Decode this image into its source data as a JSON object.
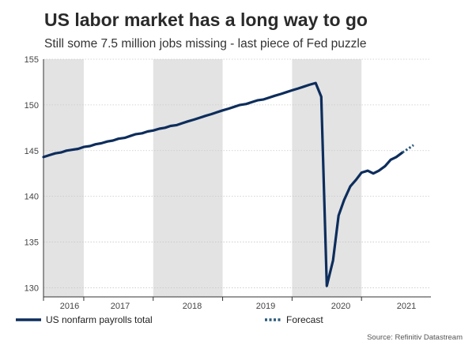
{
  "chart_data": {
    "type": "line",
    "title": "US labor market has a long way to go",
    "subtitle": "Still some 7.5 million jobs missing - last piece of Fed puzzle",
    "xlabel": "",
    "ylabel": "",
    "ylim": [
      129,
      155
    ],
    "yticks": [
      130,
      135,
      140,
      145,
      150,
      155
    ],
    "xlim": [
      2015.75,
      2021.33
    ],
    "xticks": [
      {
        "label": "2016",
        "center": 2016.0
      },
      {
        "label": "2017",
        "center": 2016.5
      },
      {
        "label": "2018",
        "center": 2017.5
      },
      {
        "label": "2019",
        "center": 2018.5
      },
      {
        "label": "2020",
        "center": 2019.5
      },
      {
        "label": "2021",
        "center": 2020.5
      }
    ],
    "shaded_years": [
      [
        2015.75,
        2016.33
      ],
      [
        2017.33,
        2018.33
      ],
      [
        2019.33,
        2020.33
      ]
    ],
    "grid": "horizontal",
    "series": [
      {
        "name": "US nonfarm payrolls total",
        "color": "#0d2d5c",
        "style": "solid",
        "points": [
          [
            2015.75,
            144.3
          ],
          [
            2015.83,
            144.5
          ],
          [
            2015.92,
            144.7
          ],
          [
            2016.0,
            144.8
          ],
          [
            2016.08,
            145.0
          ],
          [
            2016.17,
            145.1
          ],
          [
            2016.25,
            145.2
          ],
          [
            2016.33,
            145.4
          ],
          [
            2016.42,
            145.5
          ],
          [
            2016.5,
            145.7
          ],
          [
            2016.58,
            145.8
          ],
          [
            2016.67,
            146.0
          ],
          [
            2016.75,
            146.1
          ],
          [
            2016.83,
            146.3
          ],
          [
            2016.92,
            146.4
          ],
          [
            2017.0,
            146.6
          ],
          [
            2017.08,
            146.8
          ],
          [
            2017.17,
            146.9
          ],
          [
            2017.25,
            147.1
          ],
          [
            2017.33,
            147.2
          ],
          [
            2017.42,
            147.4
          ],
          [
            2017.5,
            147.5
          ],
          [
            2017.58,
            147.7
          ],
          [
            2017.67,
            147.8
          ],
          [
            2017.75,
            148.0
          ],
          [
            2017.83,
            148.2
          ],
          [
            2017.92,
            148.4
          ],
          [
            2018.0,
            148.6
          ],
          [
            2018.08,
            148.8
          ],
          [
            2018.17,
            149.0
          ],
          [
            2018.25,
            149.2
          ],
          [
            2018.33,
            149.4
          ],
          [
            2018.42,
            149.6
          ],
          [
            2018.5,
            149.8
          ],
          [
            2018.58,
            150.0
          ],
          [
            2018.67,
            150.1
          ],
          [
            2018.75,
            150.3
          ],
          [
            2018.83,
            150.5
          ],
          [
            2018.92,
            150.6
          ],
          [
            2019.0,
            150.8
          ],
          [
            2019.08,
            151.0
          ],
          [
            2019.17,
            151.2
          ],
          [
            2019.25,
            151.4
          ],
          [
            2019.33,
            151.6
          ],
          [
            2019.42,
            151.8
          ],
          [
            2019.5,
            152.0
          ],
          [
            2019.58,
            152.2
          ],
          [
            2019.67,
            152.4
          ],
          [
            2019.75,
            150.9
          ],
          [
            2019.83,
            130.2
          ],
          [
            2019.92,
            133.0
          ],
          [
            2020.0,
            137.9
          ],
          [
            2020.08,
            139.6
          ],
          [
            2020.17,
            141.1
          ],
          [
            2020.25,
            141.8
          ],
          [
            2020.33,
            142.6
          ],
          [
            2020.42,
            142.8
          ],
          [
            2020.5,
            142.5
          ],
          [
            2020.58,
            142.8
          ],
          [
            2020.67,
            143.3
          ],
          [
            2020.75,
            144.0
          ],
          [
            2020.83,
            144.3
          ],
          [
            2020.92,
            144.8
          ]
        ]
      },
      {
        "name": "Forecast",
        "color": "#2b5a7a",
        "style": "dotted",
        "points": [
          [
            2020.92,
            144.8
          ],
          [
            2021.0,
            145.2
          ],
          [
            2021.08,
            145.6
          ]
        ]
      }
    ],
    "legend": [
      {
        "label": "US nonfarm payrolls total",
        "style": "solid"
      },
      {
        "label": "Forecast",
        "style": "dotted"
      }
    ],
    "source": "Source: Refinitiv Datastream",
    "colors": {
      "band": "#e3e3e3",
      "grid": "#c8c8c8",
      "axis": "#333333"
    }
  }
}
